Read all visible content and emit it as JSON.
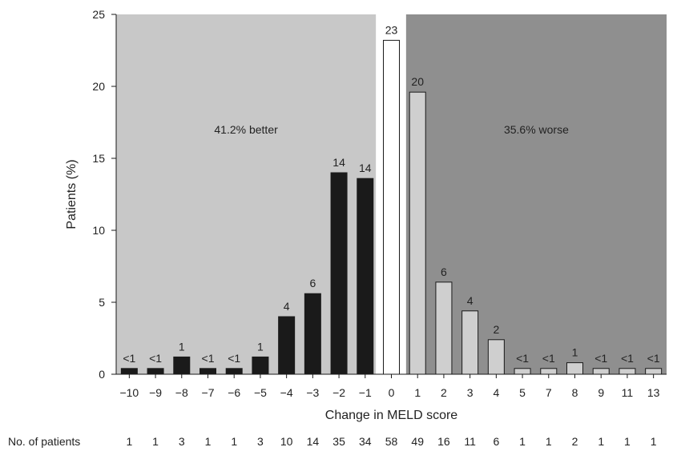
{
  "chart_data": {
    "type": "bar",
    "categories": [
      "−10",
      "−9",
      "−8",
      "−7",
      "−6",
      "−5",
      "−4",
      "−3",
      "−2",
      "−1",
      "0",
      "1",
      "2",
      "3",
      "4",
      "5",
      "7",
      "8",
      "9",
      "11",
      "13"
    ],
    "values": [
      0.4,
      0.4,
      1.2,
      0.4,
      0.4,
      1.2,
      4.0,
      5.6,
      14.0,
      13.6,
      23.2,
      19.6,
      6.4,
      4.4,
      2.4,
      0.4,
      0.4,
      0.8,
      0.4,
      0.4,
      0.4
    ],
    "data_labels": [
      "<1",
      "<1",
      "1",
      "<1",
      "<1",
      "1",
      "4",
      "6",
      "14",
      "14",
      "23",
      "20",
      "6",
      "4",
      "2",
      "<1",
      "<1",
      "1",
      "<1",
      "<1",
      "<1"
    ],
    "bar_groups": [
      "better",
      "better",
      "better",
      "better",
      "better",
      "better",
      "better",
      "better",
      "better",
      "better",
      "unchanged",
      "worse",
      "worse",
      "worse",
      "worse",
      "worse",
      "worse",
      "worse",
      "worse",
      "worse",
      "worse"
    ],
    "group_colors": {
      "better": "#1a1a1a",
      "unchanged": "#ffffff",
      "worse": "#cfcfcf"
    },
    "region_colors": {
      "better": "#c8c8c8",
      "worse": "#8f8f8f"
    },
    "region_labels": {
      "better": "41.2% better",
      "worse": "35.6% worse"
    },
    "xlabel": "Change in MELD score",
    "ylabel": "Patients (%)",
    "ylim": [
      0,
      25
    ],
    "yticks": [
      0,
      5,
      10,
      15,
      20,
      25
    ],
    "grid": false,
    "legend": "none",
    "patients_row": {
      "label": "No. of patients",
      "counts": [
        "1",
        "1",
        "3",
        "1",
        "1",
        "3",
        "10",
        "14",
        "35",
        "34",
        "58",
        "49",
        "16",
        "11",
        "6",
        "1",
        "1",
        "2",
        "1",
        "1",
        "1"
      ]
    }
  }
}
